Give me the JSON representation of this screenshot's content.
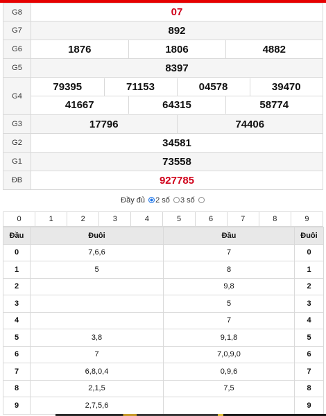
{
  "results": [
    {
      "label": "G8",
      "values": [
        "07"
      ],
      "red": true
    },
    {
      "label": "G7",
      "values": [
        "892"
      ]
    },
    {
      "label": "G6",
      "values": [
        "1876",
        "1806",
        "4882"
      ]
    },
    {
      "label": "G5",
      "values": [
        "8397"
      ]
    },
    {
      "label": "G4",
      "rows": [
        [
          "79395",
          "71153",
          "04578",
          "39470"
        ],
        [
          "41667",
          "64315",
          "58774"
        ]
      ]
    },
    {
      "label": "G3",
      "values": [
        "17796",
        "74406"
      ]
    },
    {
      "label": "G2",
      "values": [
        "34581"
      ]
    },
    {
      "label": "G1",
      "values": [
        "73558"
      ]
    },
    {
      "label": "ĐB",
      "values": [
        "927785"
      ],
      "red": true
    }
  ],
  "options": {
    "full": "Đầy đủ",
    "two": "2 số",
    "three": "3 số",
    "selected": "two"
  },
  "digit_filter": [
    "0",
    "1",
    "2",
    "3",
    "4",
    "5",
    "6",
    "7",
    "8",
    "9"
  ],
  "loto": {
    "headers": [
      "Đầu",
      "Đuôi",
      "Đầu",
      "Đuôi"
    ],
    "rows": [
      {
        "k": "0",
        "a": "7,6,6",
        "b": "7",
        "k2": "0"
      },
      {
        "k": "1",
        "a": "5",
        "b": "8",
        "k2": "1"
      },
      {
        "k": "2",
        "a": "",
        "b": "9,8",
        "k2": "2"
      },
      {
        "k": "3",
        "a": "",
        "b": "5",
        "k2": "3"
      },
      {
        "k": "4",
        "a": "",
        "b": "7",
        "k2": "4"
      },
      {
        "k": "5",
        "a": "3,8",
        "b": "9,1,8",
        "k2": "5"
      },
      {
        "k": "6",
        "a": "7",
        "b": "7,0,9,0",
        "k2": "6"
      },
      {
        "k": "7",
        "a": "6,8,0,4",
        "b": "0,9,6",
        "k2": "7"
      },
      {
        "k": "8",
        "a": "2,1,5",
        "b": "7,5",
        "k2": "8"
      },
      {
        "k": "9",
        "a": "2,7,5,6",
        "b": "",
        "k2": "9"
      }
    ]
  }
}
